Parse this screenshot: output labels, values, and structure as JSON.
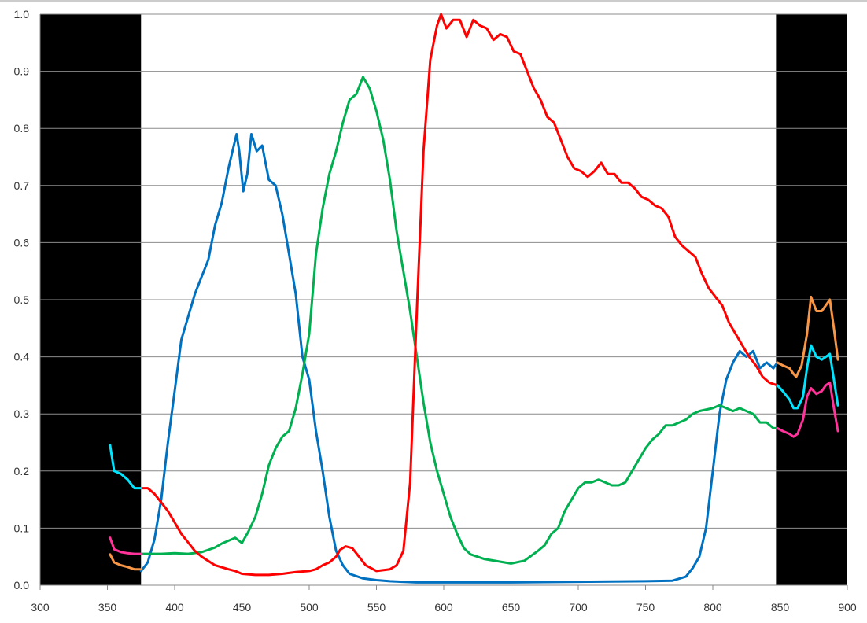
{
  "chart_data": {
    "type": "line",
    "title": "",
    "xlabel": "",
    "ylabel": "",
    "xlim": [
      300,
      900
    ],
    "ylim": [
      0,
      1.0
    ],
    "x_ticks": [
      "300",
      "350",
      "400",
      "450",
      "500",
      "550",
      "600",
      "650",
      "700",
      "750",
      "800",
      "850",
      "900"
    ],
    "y_ticks": [
      "0.0",
      "0.1",
      "0.2",
      "0.3",
      "0.4",
      "0.5",
      "0.6",
      "0.7",
      "0.8",
      "0.9",
      "1.0"
    ],
    "grid": "horizontal",
    "legend": "none",
    "shaded_regions": [
      {
        "from": 300,
        "to": 375,
        "color": "#000000"
      },
      {
        "from": 847,
        "to": 900,
        "color": "#000000"
      }
    ],
    "series": [
      {
        "color": "#0070C0",
        "points": [
          [
            375,
            0.025
          ],
          [
            380,
            0.04
          ],
          [
            385,
            0.08
          ],
          [
            390,
            0.15
          ],
          [
            395,
            0.25
          ],
          [
            400,
            0.34
          ],
          [
            405,
            0.43
          ],
          [
            410,
            0.47
          ],
          [
            415,
            0.51
          ],
          [
            420,
            0.54
          ],
          [
            425,
            0.57
          ],
          [
            430,
            0.63
          ],
          [
            435,
            0.67
          ],
          [
            440,
            0.73
          ],
          [
            443,
            0.76
          ],
          [
            446,
            0.79
          ],
          [
            448,
            0.76
          ],
          [
            451,
            0.69
          ],
          [
            454,
            0.72
          ],
          [
            457,
            0.79
          ],
          [
            461,
            0.76
          ],
          [
            465,
            0.77
          ],
          [
            470,
            0.71
          ],
          [
            475,
            0.7
          ],
          [
            480,
            0.65
          ],
          [
            485,
            0.58
          ],
          [
            490,
            0.51
          ],
          [
            495,
            0.4
          ],
          [
            500,
            0.36
          ],
          [
            505,
            0.27
          ],
          [
            510,
            0.2
          ],
          [
            515,
            0.12
          ],
          [
            520,
            0.06
          ],
          [
            525,
            0.035
          ],
          [
            530,
            0.02
          ],
          [
            540,
            0.012
          ],
          [
            550,
            0.009
          ],
          [
            560,
            0.007
          ],
          [
            580,
            0.005
          ],
          [
            600,
            0.005
          ],
          [
            650,
            0.005
          ],
          [
            700,
            0.006
          ],
          [
            750,
            0.007
          ],
          [
            770,
            0.008
          ],
          [
            780,
            0.015
          ],
          [
            785,
            0.03
          ],
          [
            790,
            0.05
          ],
          [
            795,
            0.1
          ],
          [
            800,
            0.2
          ],
          [
            805,
            0.3
          ],
          [
            810,
            0.36
          ],
          [
            815,
            0.39
          ],
          [
            820,
            0.41
          ],
          [
            825,
            0.4
          ],
          [
            830,
            0.41
          ],
          [
            835,
            0.38
          ],
          [
            840,
            0.39
          ],
          [
            845,
            0.38
          ],
          [
            848,
            0.39
          ]
        ]
      },
      {
        "color": "#00B050",
        "points": [
          [
            375,
            0.055
          ],
          [
            390,
            0.055
          ],
          [
            400,
            0.056
          ],
          [
            410,
            0.055
          ],
          [
            420,
            0.058
          ],
          [
            425,
            0.062
          ],
          [
            430,
            0.066
          ],
          [
            435,
            0.073
          ],
          [
            440,
            0.078
          ],
          [
            445,
            0.083
          ],
          [
            450,
            0.074
          ],
          [
            455,
            0.095
          ],
          [
            460,
            0.12
          ],
          [
            465,
            0.16
          ],
          [
            470,
            0.21
          ],
          [
            475,
            0.24
          ],
          [
            480,
            0.26
          ],
          [
            485,
            0.27
          ],
          [
            490,
            0.31
          ],
          [
            495,
            0.37
          ],
          [
            500,
            0.44
          ],
          [
            505,
            0.58
          ],
          [
            510,
            0.66
          ],
          [
            515,
            0.72
          ],
          [
            520,
            0.76
          ],
          [
            525,
            0.81
          ],
          [
            530,
            0.85
          ],
          [
            535,
            0.86
          ],
          [
            540,
            0.89
          ],
          [
            545,
            0.87
          ],
          [
            550,
            0.83
          ],
          [
            555,
            0.78
          ],
          [
            560,
            0.71
          ],
          [
            565,
            0.62
          ],
          [
            570,
            0.55
          ],
          [
            575,
            0.48
          ],
          [
            580,
            0.4
          ],
          [
            585,
            0.32
          ],
          [
            590,
            0.25
          ],
          [
            595,
            0.2
          ],
          [
            600,
            0.16
          ],
          [
            605,
            0.12
          ],
          [
            610,
            0.09
          ],
          [
            615,
            0.065
          ],
          [
            620,
            0.054
          ],
          [
            630,
            0.046
          ],
          [
            640,
            0.042
          ],
          [
            650,
            0.038
          ],
          [
            660,
            0.043
          ],
          [
            670,
            0.06
          ],
          [
            675,
            0.07
          ],
          [
            680,
            0.09
          ],
          [
            685,
            0.1
          ],
          [
            690,
            0.13
          ],
          [
            695,
            0.15
          ],
          [
            700,
            0.17
          ],
          [
            705,
            0.18
          ],
          [
            710,
            0.18
          ],
          [
            715,
            0.185
          ],
          [
            720,
            0.18
          ],
          [
            725,
            0.175
          ],
          [
            730,
            0.175
          ],
          [
            735,
            0.18
          ],
          [
            740,
            0.2
          ],
          [
            745,
            0.22
          ],
          [
            750,
            0.24
          ],
          [
            755,
            0.255
          ],
          [
            760,
            0.265
          ],
          [
            765,
            0.28
          ],
          [
            770,
            0.28
          ],
          [
            775,
            0.285
          ],
          [
            780,
            0.29
          ],
          [
            785,
            0.3
          ],
          [
            790,
            0.305
          ],
          [
            800,
            0.31
          ],
          [
            805,
            0.315
          ],
          [
            810,
            0.31
          ],
          [
            815,
            0.305
          ],
          [
            820,
            0.31
          ],
          [
            825,
            0.305
          ],
          [
            830,
            0.3
          ],
          [
            835,
            0.285
          ],
          [
            840,
            0.285
          ],
          [
            845,
            0.275
          ],
          [
            848,
            0.275
          ]
        ]
      },
      {
        "color": "#FF0000",
        "points": [
          [
            375,
            0.17
          ],
          [
            380,
            0.17
          ],
          [
            385,
            0.16
          ],
          [
            390,
            0.145
          ],
          [
            395,
            0.13
          ],
          [
            400,
            0.11
          ],
          [
            405,
            0.09
          ],
          [
            410,
            0.075
          ],
          [
            415,
            0.06
          ],
          [
            420,
            0.05
          ],
          [
            430,
            0.035
          ],
          [
            440,
            0.028
          ],
          [
            445,
            0.025
          ],
          [
            450,
            0.02
          ],
          [
            460,
            0.018
          ],
          [
            470,
            0.018
          ],
          [
            480,
            0.02
          ],
          [
            490,
            0.023
          ],
          [
            500,
            0.025
          ],
          [
            505,
            0.028
          ],
          [
            510,
            0.035
          ],
          [
            515,
            0.04
          ],
          [
            520,
            0.05
          ],
          [
            523,
            0.062
          ],
          [
            527,
            0.068
          ],
          [
            532,
            0.065
          ],
          [
            537,
            0.05
          ],
          [
            542,
            0.035
          ],
          [
            550,
            0.025
          ],
          [
            560,
            0.028
          ],
          [
            565,
            0.035
          ],
          [
            570,
            0.06
          ],
          [
            575,
            0.18
          ],
          [
            580,
            0.48
          ],
          [
            585,
            0.76
          ],
          [
            590,
            0.92
          ],
          [
            595,
            0.98
          ],
          [
            598,
            1.0
          ],
          [
            602,
            0.975
          ],
          [
            607,
            0.99
          ],
          [
            612,
            0.99
          ],
          [
            617,
            0.96
          ],
          [
            622,
            0.99
          ],
          [
            627,
            0.98
          ],
          [
            632,
            0.975
          ],
          [
            637,
            0.955
          ],
          [
            642,
            0.965
          ],
          [
            647,
            0.96
          ],
          [
            652,
            0.935
          ],
          [
            657,
            0.93
          ],
          [
            662,
            0.9
          ],
          [
            667,
            0.87
          ],
          [
            672,
            0.85
          ],
          [
            677,
            0.82
          ],
          [
            682,
            0.81
          ],
          [
            687,
            0.78
          ],
          [
            692,
            0.75
          ],
          [
            697,
            0.73
          ],
          [
            702,
            0.725
          ],
          [
            707,
            0.715
          ],
          [
            712,
            0.725
          ],
          [
            717,
            0.74
          ],
          [
            722,
            0.72
          ],
          [
            727,
            0.72
          ],
          [
            732,
            0.705
          ],
          [
            737,
            0.705
          ],
          [
            742,
            0.695
          ],
          [
            747,
            0.68
          ],
          [
            752,
            0.675
          ],
          [
            757,
            0.665
          ],
          [
            762,
            0.66
          ],
          [
            767,
            0.645
          ],
          [
            772,
            0.61
          ],
          [
            777,
            0.595
          ],
          [
            782,
            0.585
          ],
          [
            787,
            0.575
          ],
          [
            792,
            0.545
          ],
          [
            797,
            0.52
          ],
          [
            802,
            0.505
          ],
          [
            807,
            0.49
          ],
          [
            812,
            0.46
          ],
          [
            817,
            0.44
          ],
          [
            822,
            0.42
          ],
          [
            827,
            0.4
          ],
          [
            832,
            0.385
          ],
          [
            837,
            0.365
          ],
          [
            842,
            0.355
          ],
          [
            848,
            0.35
          ]
        ]
      },
      {
        "color": "#00E5FF",
        "points": [
          [
            352,
            0.245
          ],
          [
            355,
            0.2
          ],
          [
            360,
            0.195
          ],
          [
            365,
            0.185
          ],
          [
            370,
            0.17
          ],
          [
            375,
            0.17
          ]
        ]
      },
      {
        "color": "#FF3399",
        "points": [
          [
            352,
            0.083
          ],
          [
            355,
            0.063
          ],
          [
            360,
            0.058
          ],
          [
            365,
            0.056
          ],
          [
            370,
            0.055
          ],
          [
            375,
            0.055
          ]
        ]
      },
      {
        "color": "#F79646",
        "points": [
          [
            352,
            0.054
          ],
          [
            355,
            0.04
          ],
          [
            360,
            0.035
          ],
          [
            365,
            0.032
          ],
          [
            370,
            0.028
          ],
          [
            375,
            0.028
          ]
        ]
      },
      {
        "color": "#F79646",
        "points": [
          [
            848,
            0.39
          ],
          [
            852,
            0.385
          ],
          [
            857,
            0.38
          ],
          [
            860,
            0.37
          ],
          [
            862,
            0.365
          ],
          [
            866,
            0.385
          ],
          [
            870,
            0.44
          ],
          [
            873,
            0.505
          ],
          [
            877,
            0.48
          ],
          [
            881,
            0.48
          ],
          [
            884,
            0.49
          ],
          [
            887,
            0.5
          ],
          [
            890,
            0.45
          ],
          [
            893,
            0.395
          ]
        ]
      },
      {
        "color": "#00E5FF",
        "points": [
          [
            848,
            0.35
          ],
          [
            852,
            0.34
          ],
          [
            857,
            0.325
          ],
          [
            860,
            0.31
          ],
          [
            863,
            0.31
          ],
          [
            867,
            0.33
          ],
          [
            870,
            0.38
          ],
          [
            873,
            0.42
          ],
          [
            877,
            0.4
          ],
          [
            881,
            0.395
          ],
          [
            884,
            0.4
          ],
          [
            887,
            0.405
          ],
          [
            890,
            0.36
          ],
          [
            893,
            0.315
          ]
        ]
      },
      {
        "color": "#FF3399",
        "points": [
          [
            848,
            0.275
          ],
          [
            852,
            0.27
          ],
          [
            857,
            0.265
          ],
          [
            860,
            0.26
          ],
          [
            863,
            0.265
          ],
          [
            867,
            0.29
          ],
          [
            870,
            0.33
          ],
          [
            873,
            0.345
          ],
          [
            877,
            0.335
          ],
          [
            881,
            0.34
          ],
          [
            884,
            0.35
          ],
          [
            887,
            0.355
          ],
          [
            890,
            0.31
          ],
          [
            893,
            0.27
          ]
        ]
      }
    ]
  }
}
